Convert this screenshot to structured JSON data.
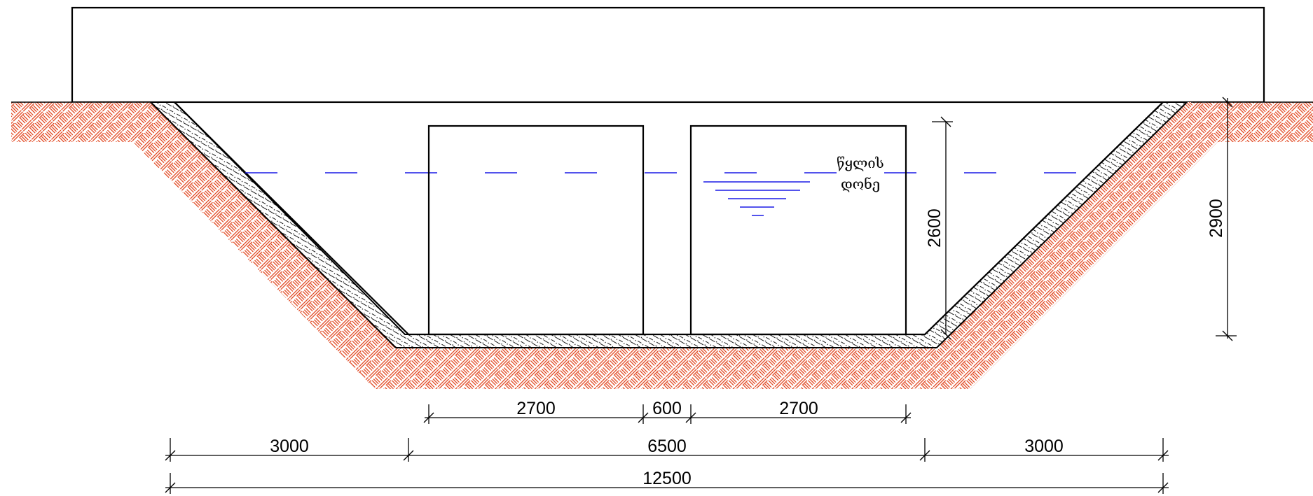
{
  "dimensions": {
    "pipe_width_1": "2700",
    "pipe_gap": "600",
    "pipe_width_2": "2700",
    "left_slope": "3000",
    "bottom_width": "6500",
    "right_slope": "3000",
    "total_width": "12500",
    "pipe_height": "2600",
    "trench_depth": "2900"
  },
  "water_level": {
    "line1": "წყლის",
    "line2": "დონე"
  },
  "colors": {
    "soil_hatch": "#e03a10",
    "water": "#1a1ae6",
    "line": "#000000",
    "background": "#ffffff"
  }
}
